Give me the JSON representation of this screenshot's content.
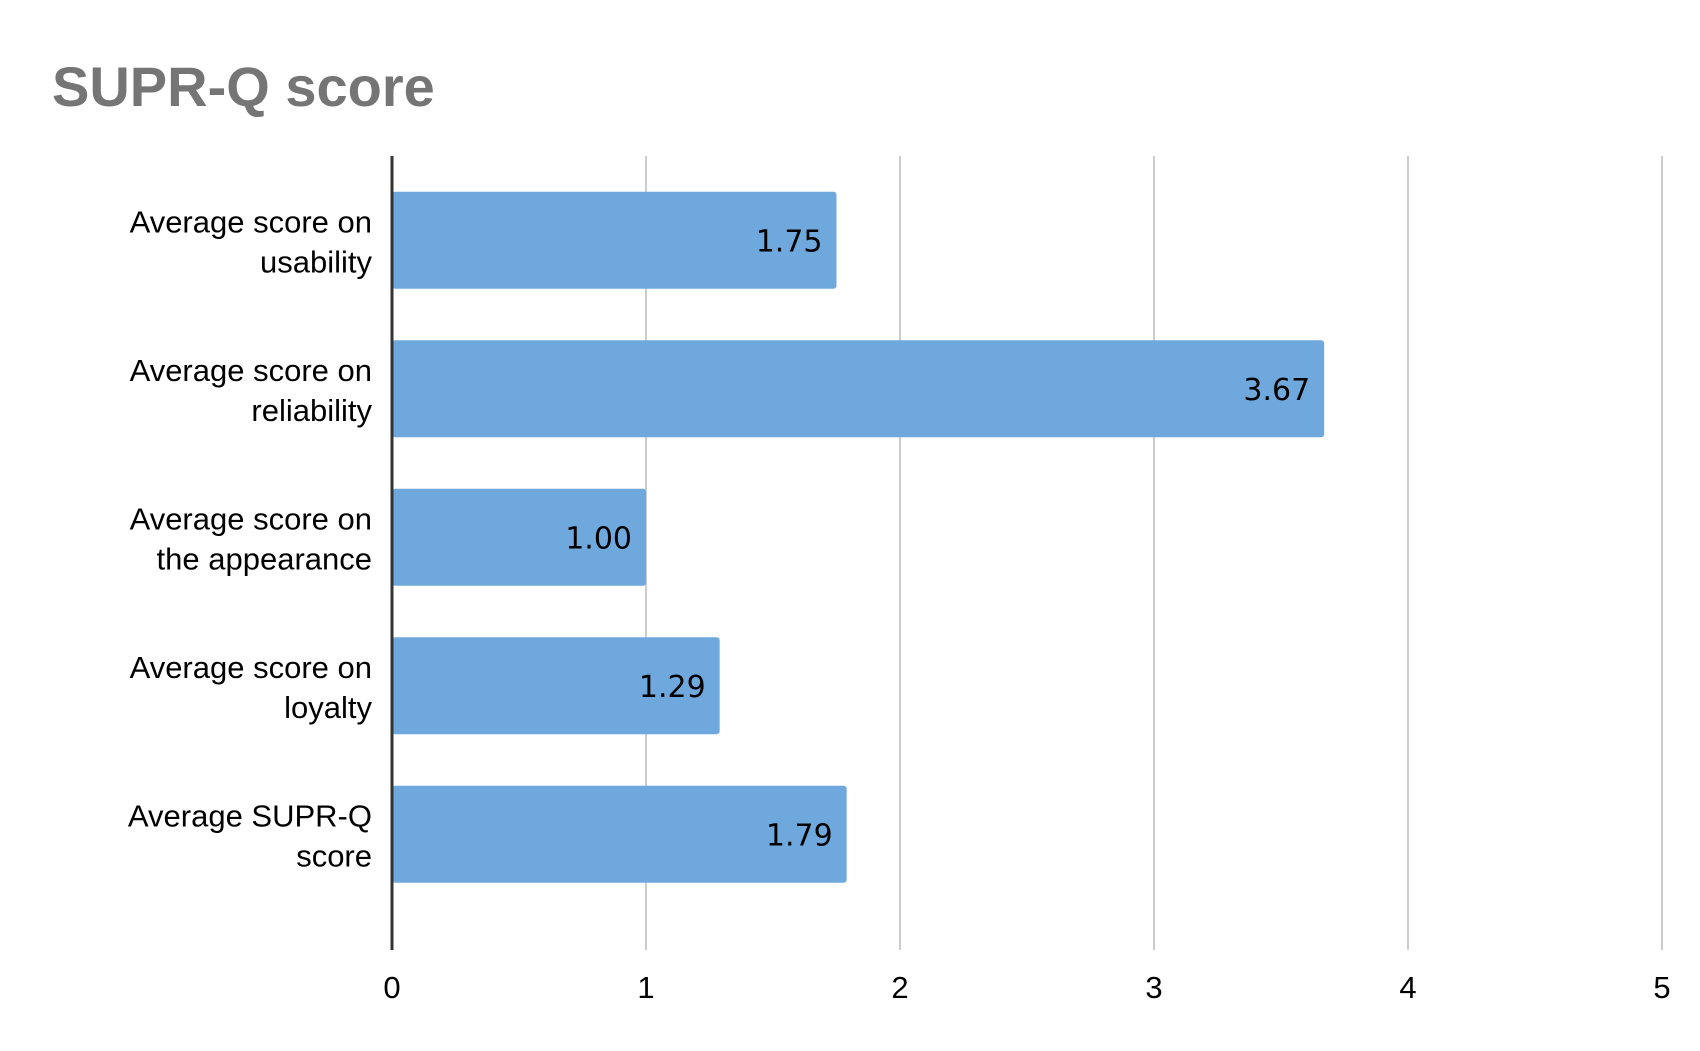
{
  "chart_data": {
    "type": "bar",
    "orientation": "horizontal",
    "title": "SUPR-Q score",
    "categories": [
      [
        "Average score on",
        "usability"
      ],
      [
        "Average score on",
        "reliability"
      ],
      [
        "Average score on",
        "the appearance"
      ],
      [
        "Average score on",
        "loyalty"
      ],
      [
        "Average SUPR-Q",
        "score"
      ]
    ],
    "values": [
      1.75,
      3.67,
      1.0,
      1.29,
      1.79
    ],
    "value_labels": [
      "1.75",
      "3.67",
      "1.00",
      "1.29",
      "1.79"
    ],
    "xlim": [
      0,
      5
    ],
    "xticks": [
      "0",
      "1",
      "2",
      "3",
      "4",
      "5"
    ],
    "xlabel": "",
    "ylabel": "",
    "grid": true,
    "legend": "none",
    "colors": {
      "bar": "#6FA8DC",
      "grid": "#CCCCCC",
      "axis": "#333333",
      "title": "#757575"
    }
  }
}
